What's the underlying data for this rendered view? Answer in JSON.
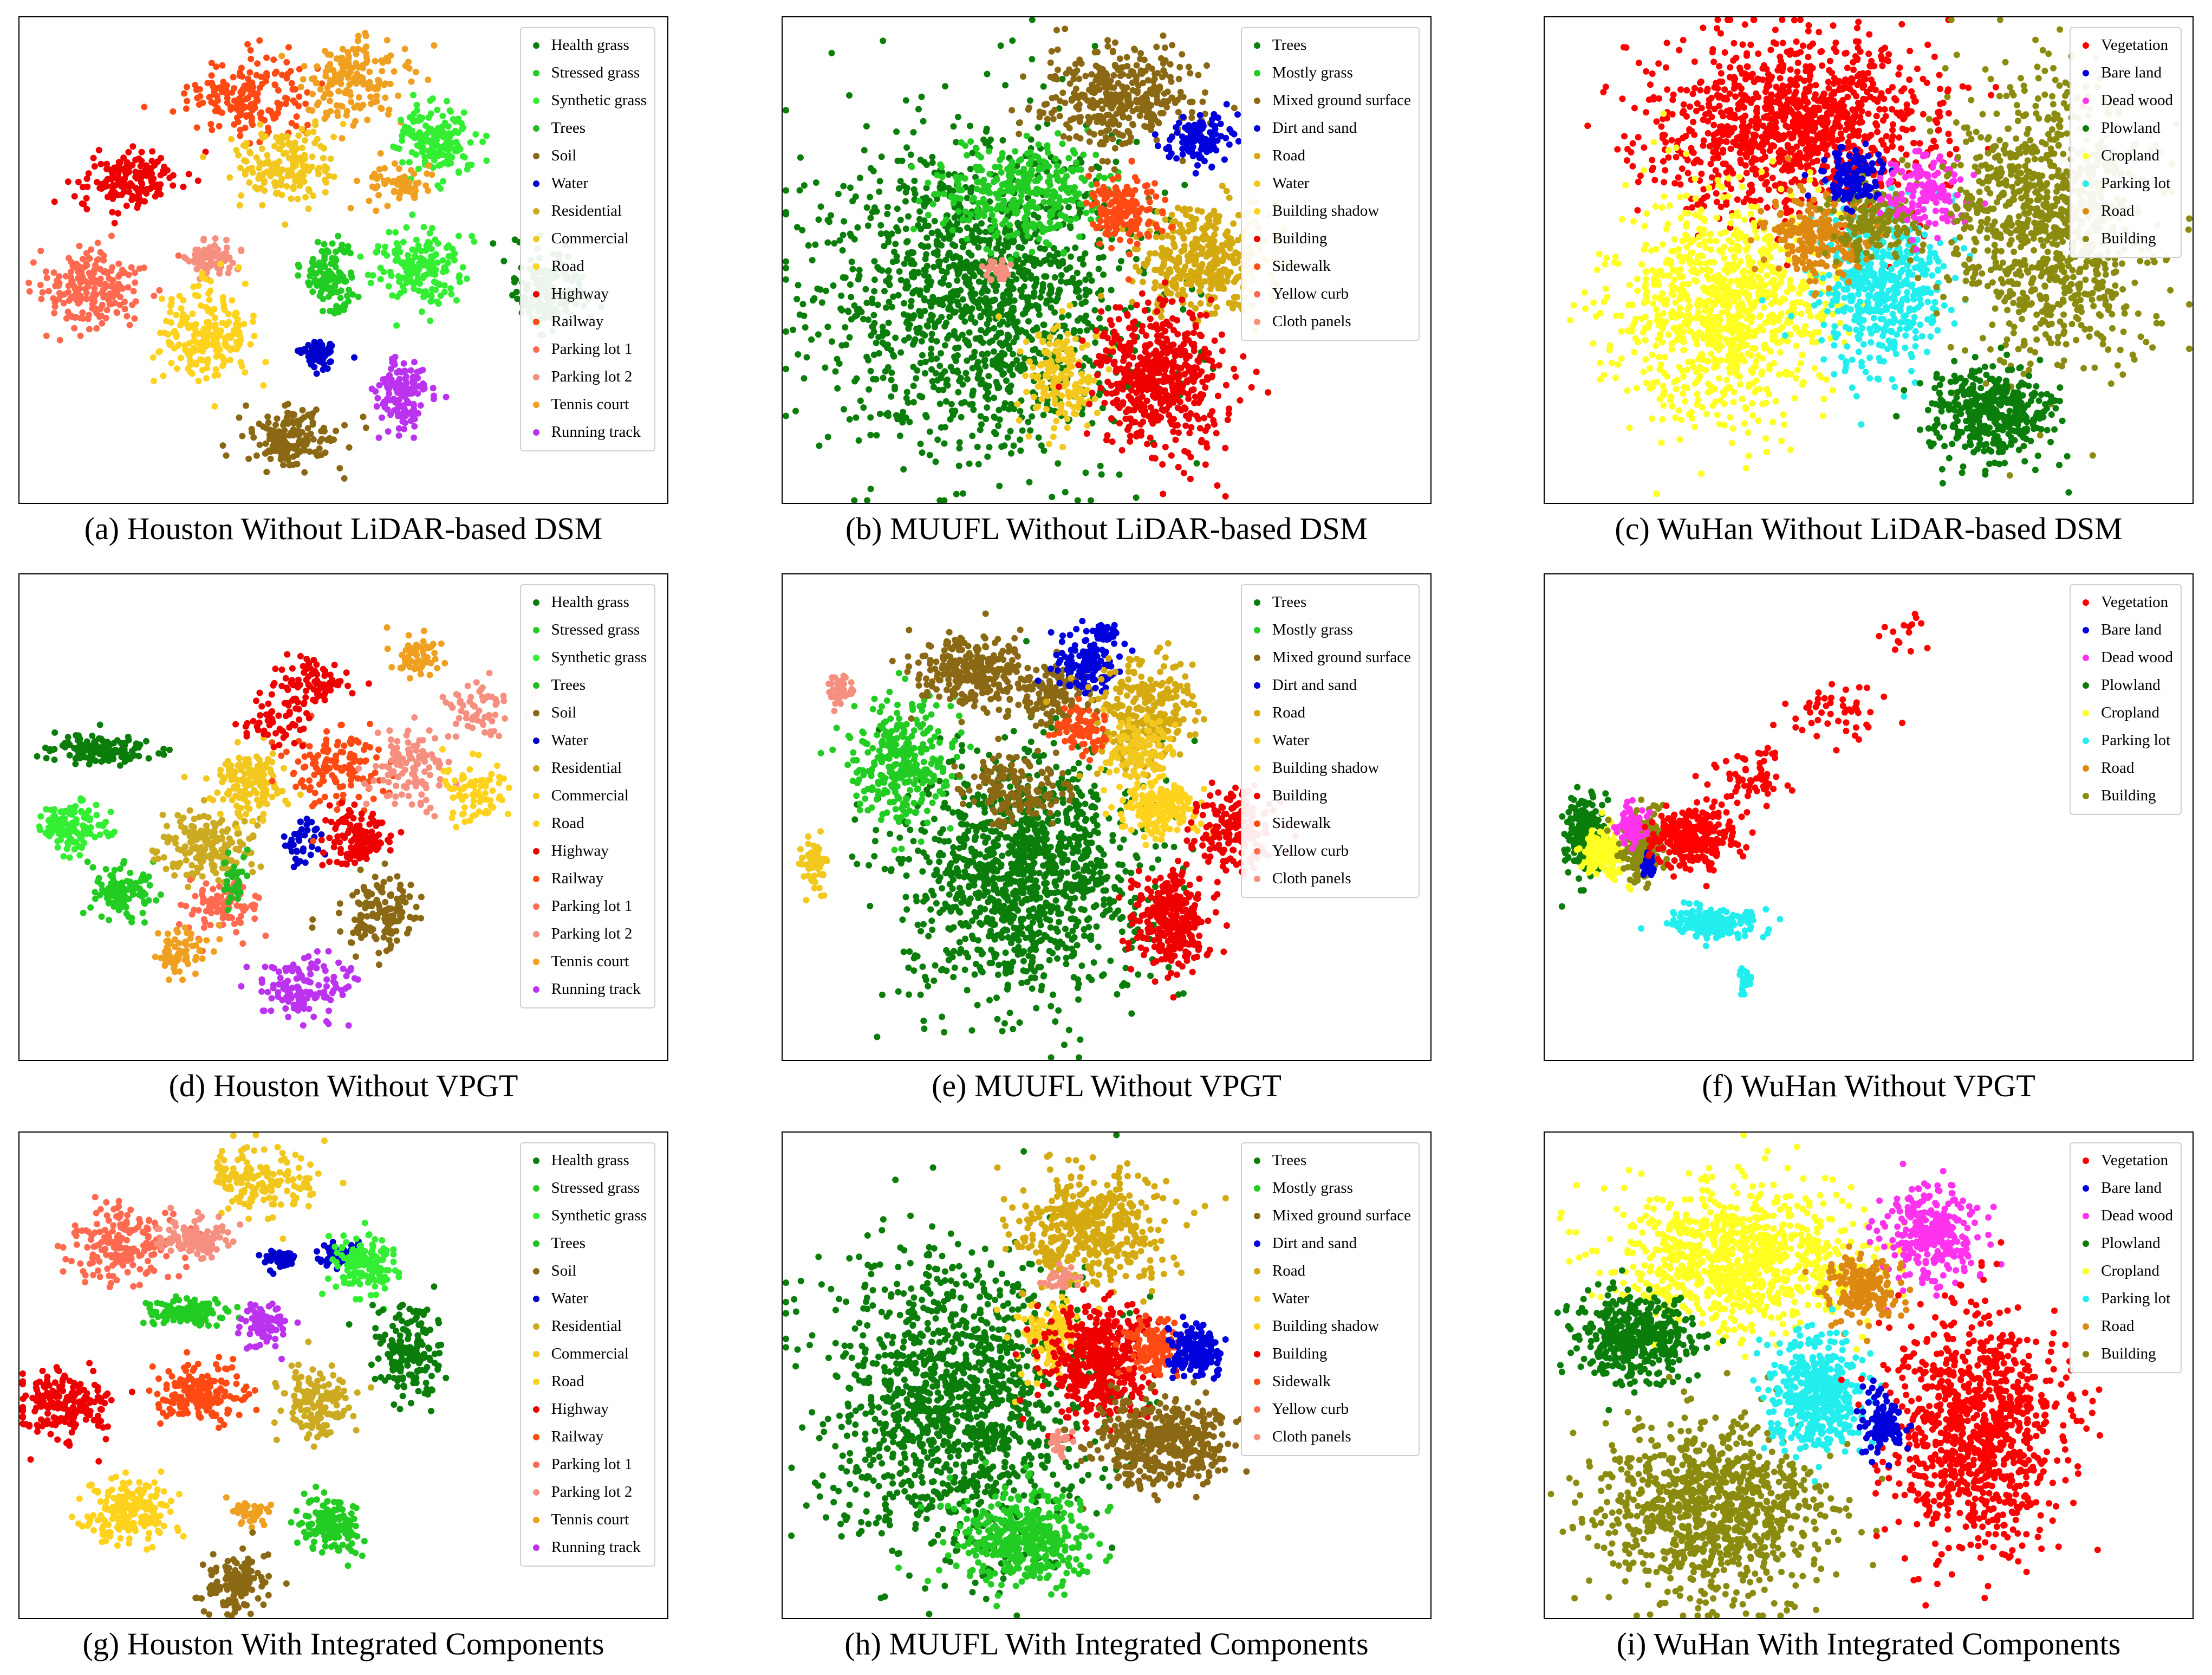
{
  "legends": {
    "houston": {
      "labels": [
        "Health grass",
        "Stressed grass",
        "Synthetic grass",
        "Trees",
        "Soil",
        "Water",
        "Residential",
        "Commercial",
        "Road",
        "Highway",
        "Railway",
        "Parking lot 1",
        "Parking lot 2",
        "Tennis court",
        "Running track"
      ],
      "colors": [
        "#0a7d0a",
        "#22cc22",
        "#33ee33",
        "#22bb22",
        "#8b6914",
        "#0000cc",
        "#ccaa22",
        "#f2c81e",
        "#ffd21e",
        "#ee0000",
        "#ff4a14",
        "#ff6a50",
        "#f59080",
        "#f0a020",
        "#bb33ee"
      ]
    },
    "muufl": {
      "labels": [
        "Trees",
        "Mostly grass",
        "Mixed ground surface",
        "Dirt and sand",
        "Road",
        "Water",
        "Building shadow",
        "Building",
        "Sidewalk",
        "Yellow curb",
        "Cloth panels"
      ],
      "colors": [
        "#0a7d0a",
        "#22cc22",
        "#8b6914",
        "#0000dd",
        "#d4aa10",
        "#f2c81e",
        "#ffd21e",
        "#ee0000",
        "#ff4a14",
        "#ff6a50",
        "#f59080"
      ]
    },
    "wuhan": {
      "labels": [
        "Vegetation",
        "Bare land",
        "Dead wood",
        "Plowland",
        "Cropland",
        "Parking lot",
        "Road",
        "Building"
      ],
      "colors": [
        "#ff0000",
        "#0000dd",
        "#ff33ee",
        "#0a7d0a",
        "#ffff22",
        "#22eeee",
        "#dd8811",
        "#8b8b10"
      ]
    }
  },
  "chart_data": [
    {
      "type": "scatter",
      "panel": "a",
      "dataset": "houston",
      "title": "(a) Houston Without LiDAR-based DSM",
      "clusters": [
        [
          0.35,
          0.17,
          0.09,
          0.08,
          10,
          180
        ],
        [
          0.52,
          0.13,
          0.08,
          0.08,
          13,
          170
        ],
        [
          0.64,
          0.25,
          0.06,
          0.08,
          2,
          160
        ],
        [
          0.17,
          0.34,
          0.08,
          0.06,
          9,
          160
        ],
        [
          0.41,
          0.3,
          0.08,
          0.08,
          7,
          170
        ],
        [
          0.59,
          0.34,
          0.05,
          0.04,
          13,
          60
        ],
        [
          0.11,
          0.56,
          0.08,
          0.08,
          11,
          200
        ],
        [
          0.3,
          0.5,
          0.04,
          0.04,
          12,
          80
        ],
        [
          0.48,
          0.53,
          0.04,
          0.07,
          1,
          120
        ],
        [
          0.62,
          0.52,
          0.07,
          0.07,
          2,
          160
        ],
        [
          0.82,
          0.56,
          0.06,
          0.08,
          0,
          170
        ],
        [
          0.29,
          0.66,
          0.07,
          0.1,
          8,
          200
        ],
        [
          0.46,
          0.69,
          0.03,
          0.03,
          5,
          70
        ],
        [
          0.59,
          0.78,
          0.04,
          0.07,
          14,
          130
        ],
        [
          0.42,
          0.87,
          0.07,
          0.07,
          4,
          160
        ]
      ]
    },
    {
      "type": "scatter",
      "panel": "b",
      "dataset": "muufl",
      "title": "(b) MUUFL Without LiDAR-based DSM",
      "clusters": [
        [
          0.3,
          0.57,
          0.25,
          0.33,
          0,
          1400
        ],
        [
          0.37,
          0.36,
          0.13,
          0.1,
          1,
          350
        ],
        [
          0.52,
          0.17,
          0.12,
          0.1,
          2,
          380
        ],
        [
          0.64,
          0.25,
          0.05,
          0.06,
          3,
          110
        ],
        [
          0.65,
          0.5,
          0.1,
          0.11,
          4,
          380
        ],
        [
          0.43,
          0.74,
          0.06,
          0.1,
          5,
          160
        ],
        [
          0.53,
          0.4,
          0.05,
          0.07,
          8,
          160
        ],
        [
          0.58,
          0.74,
          0.1,
          0.14,
          7,
          520
        ],
        [
          0.33,
          0.52,
          0.02,
          0.02,
          10,
          40
        ]
      ]
    },
    {
      "type": "scatter",
      "panel": "c",
      "dataset": "wuhan",
      "title": "(c) WuHan Without LiDAR-based DSM",
      "clusters": [
        [
          0.38,
          0.22,
          0.22,
          0.18,
          0,
          1100
        ],
        [
          0.28,
          0.6,
          0.16,
          0.24,
          4,
          950
        ],
        [
          0.52,
          0.55,
          0.1,
          0.17,
          5,
          480
        ],
        [
          0.43,
          0.45,
          0.08,
          0.09,
          6,
          240
        ],
        [
          0.51,
          0.42,
          0.07,
          0.08,
          7,
          160
        ],
        [
          0.48,
          0.33,
          0.05,
          0.06,
          1,
          120
        ],
        [
          0.59,
          0.36,
          0.06,
          0.09,
          2,
          140
        ],
        [
          0.78,
          0.42,
          0.16,
          0.3,
          7,
          1000
        ],
        [
          0.69,
          0.81,
          0.1,
          0.1,
          3,
          380
        ]
      ]
    },
    {
      "type": "scatter",
      "panel": "d",
      "dataset": "houston",
      "title": "(d) Houston Without VPGT",
      "clusters": [
        [
          0.12,
          0.36,
          0.08,
          0.03,
          0,
          140
        ],
        [
          0.08,
          0.52,
          0.05,
          0.05,
          2,
          130
        ],
        [
          0.16,
          0.65,
          0.05,
          0.06,
          1,
          110
        ],
        [
          0.29,
          0.56,
          0.07,
          0.07,
          6,
          180
        ],
        [
          0.31,
          0.68,
          0.06,
          0.06,
          11,
          90
        ],
        [
          0.35,
          0.43,
          0.06,
          0.07,
          7,
          140
        ],
        [
          0.44,
          0.54,
          0.03,
          0.06,
          5,
          40
        ],
        [
          0.33,
          0.63,
          0.02,
          0.06,
          3,
          40
        ],
        [
          0.48,
          0.4,
          0.08,
          0.08,
          10,
          140
        ],
        [
          0.52,
          0.54,
          0.05,
          0.06,
          9,
          120
        ],
        [
          0.46,
          0.22,
          0.06,
          0.05,
          9,
          80
        ],
        [
          0.6,
          0.4,
          0.06,
          0.08,
          12,
          110
        ],
        [
          0.62,
          0.17,
          0.04,
          0.04,
          13,
          60
        ],
        [
          0.56,
          0.7,
          0.06,
          0.08,
          4,
          140
        ],
        [
          0.44,
          0.85,
          0.07,
          0.06,
          14,
          130
        ],
        [
          0.25,
          0.78,
          0.04,
          0.05,
          13,
          70
        ],
        [
          0.7,
          0.45,
          0.05,
          0.08,
          8,
          80
        ],
        [
          0.71,
          0.28,
          0.06,
          0.06,
          12,
          60
        ],
        [
          0.4,
          0.3,
          0.05,
          0.05,
          9,
          60
        ]
      ]
    },
    {
      "type": "scatter",
      "panel": "e",
      "dataset": "muufl",
      "title": "(e) MUUFL Without VPGT",
      "clusters": [
        [
          0.37,
          0.62,
          0.18,
          0.26,
          0,
          1200
        ],
        [
          0.18,
          0.38,
          0.08,
          0.12,
          1,
          300
        ],
        [
          0.3,
          0.2,
          0.09,
          0.07,
          2,
          260
        ],
        [
          0.42,
          0.25,
          0.06,
          0.06,
          2,
          140
        ],
        [
          0.36,
          0.44,
          0.08,
          0.07,
          2,
          150
        ],
        [
          0.47,
          0.18,
          0.05,
          0.06,
          3,
          120
        ],
        [
          0.56,
          0.28,
          0.08,
          0.1,
          4,
          250
        ],
        [
          0.58,
          0.48,
          0.07,
          0.06,
          6,
          180
        ],
        [
          0.55,
          0.36,
          0.05,
          0.06,
          5,
          120
        ],
        [
          0.6,
          0.72,
          0.06,
          0.1,
          7,
          300
        ],
        [
          0.7,
          0.52,
          0.06,
          0.08,
          7,
          180
        ],
        [
          0.09,
          0.24,
          0.02,
          0.04,
          10,
          40
        ],
        [
          0.05,
          0.6,
          0.02,
          0.05,
          5,
          60
        ],
        [
          0.5,
          0.12,
          0.02,
          0.02,
          3,
          30
        ],
        [
          0.46,
          0.32,
          0.04,
          0.05,
          8,
          90
        ]
      ]
    },
    {
      "type": "scatter",
      "panel": "f",
      "dataset": "wuhan",
      "title": "(f) WuHan Without VPGT",
      "clusters": [
        [
          0.06,
          0.54,
          0.03,
          0.08,
          3,
          200
        ],
        [
          0.09,
          0.58,
          0.03,
          0.05,
          4,
          160
        ],
        [
          0.15,
          0.56,
          0.03,
          0.07,
          7,
          240
        ],
        [
          0.13,
          0.52,
          0.02,
          0.04,
          2,
          80
        ],
        [
          0.16,
          0.6,
          0.01,
          0.03,
          1,
          40
        ],
        [
          0.23,
          0.54,
          0.06,
          0.06,
          0,
          320
        ],
        [
          0.32,
          0.42,
          0.06,
          0.06,
          0,
          60
        ],
        [
          0.46,
          0.28,
          0.08,
          0.06,
          0,
          50
        ],
        [
          0.56,
          0.12,
          0.04,
          0.04,
          0,
          15
        ],
        [
          0.26,
          0.72,
          0.07,
          0.03,
          5,
          200
        ],
        [
          0.31,
          0.84,
          0.01,
          0.03,
          5,
          20
        ]
      ]
    },
    {
      "type": "scatter",
      "panel": "g",
      "dataset": "houston",
      "title": "(g) Houston With Integrated Components",
      "clusters": [
        [
          0.37,
          0.1,
          0.08,
          0.06,
          7,
          160
        ],
        [
          0.16,
          0.23,
          0.08,
          0.08,
          11,
          180
        ],
        [
          0.27,
          0.22,
          0.05,
          0.04,
          12,
          110
        ],
        [
          0.4,
          0.26,
          0.03,
          0.02,
          5,
          50
        ],
        [
          0.49,
          0.25,
          0.03,
          0.03,
          5,
          40
        ],
        [
          0.53,
          0.27,
          0.05,
          0.06,
          2,
          130
        ],
        [
          0.26,
          0.37,
          0.07,
          0.03,
          1,
          120
        ],
        [
          0.38,
          0.4,
          0.04,
          0.04,
          14,
          80
        ],
        [
          0.6,
          0.45,
          0.05,
          0.1,
          0,
          170
        ],
        [
          0.07,
          0.56,
          0.07,
          0.07,
          9,
          200
        ],
        [
          0.28,
          0.54,
          0.07,
          0.06,
          10,
          180
        ],
        [
          0.46,
          0.56,
          0.05,
          0.07,
          6,
          150
        ],
        [
          0.17,
          0.78,
          0.07,
          0.06,
          8,
          200
        ],
        [
          0.35,
          0.78,
          0.03,
          0.03,
          13,
          50
        ],
        [
          0.48,
          0.81,
          0.05,
          0.06,
          1,
          140
        ],
        [
          0.33,
          0.93,
          0.05,
          0.06,
          4,
          140
        ]
      ]
    },
    {
      "type": "scatter",
      "panel": "h",
      "dataset": "muufl",
      "title": "(h) MUUFL With Integrated Components",
      "clusters": [
        [
          0.27,
          0.56,
          0.2,
          0.32,
          0,
          1300
        ],
        [
          0.47,
          0.2,
          0.12,
          0.13,
          4,
          450
        ],
        [
          0.42,
          0.42,
          0.06,
          0.08,
          6,
          150
        ],
        [
          0.49,
          0.47,
          0.08,
          0.11,
          7,
          450
        ],
        [
          0.55,
          0.64,
          0.07,
          0.1,
          2,
          220
        ],
        [
          0.63,
          0.64,
          0.07,
          0.08,
          2,
          200
        ],
        [
          0.37,
          0.84,
          0.1,
          0.1,
          1,
          420
        ],
        [
          0.57,
          0.45,
          0.04,
          0.06,
          8,
          120
        ],
        [
          0.64,
          0.45,
          0.04,
          0.06,
          3,
          160
        ],
        [
          0.43,
          0.3,
          0.03,
          0.03,
          10,
          30
        ],
        [
          0.43,
          0.64,
          0.02,
          0.03,
          10,
          25
        ]
      ]
    },
    {
      "type": "scatter",
      "panel": "i",
      "dataset": "wuhan",
      "title": "(i) WuHan With Integrated Components",
      "clusters": [
        [
          0.3,
          0.26,
          0.18,
          0.15,
          4,
          900
        ],
        [
          0.14,
          0.42,
          0.09,
          0.09,
          3,
          400
        ],
        [
          0.26,
          0.78,
          0.17,
          0.18,
          7,
          950
        ],
        [
          0.6,
          0.21,
          0.07,
          0.1,
          2,
          300
        ],
        [
          0.49,
          0.32,
          0.06,
          0.07,
          6,
          180
        ],
        [
          0.42,
          0.54,
          0.07,
          0.12,
          5,
          450
        ],
        [
          0.67,
          0.62,
          0.13,
          0.25,
          0,
          950
        ],
        [
          0.52,
          0.6,
          0.03,
          0.08,
          1,
          120
        ]
      ]
    }
  ]
}
